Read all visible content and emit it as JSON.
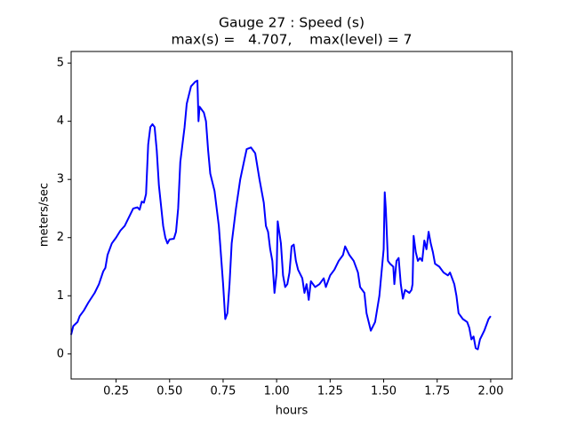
{
  "chart_data": {
    "type": "line",
    "title": "Gauge 27 : Speed (s)",
    "subtitle": "max(s) =   4.707,    max(level) = 7",
    "xlabel": "hours",
    "ylabel": "meters/sec",
    "color": "#0000ff",
    "xlim": [
      0.04,
      2.1
    ],
    "ylim": [
      -0.43,
      5.2
    ],
    "xticks": [
      {
        "value": 0.25,
        "label": "0.25"
      },
      {
        "value": 0.5,
        "label": "0.50"
      },
      {
        "value": 0.75,
        "label": "0.75"
      },
      {
        "value": 1.0,
        "label": "1.00"
      },
      {
        "value": 1.25,
        "label": "1.25"
      },
      {
        "value": 1.5,
        "label": "1.50"
      },
      {
        "value": 1.75,
        "label": "1.75"
      },
      {
        "value": 2.0,
        "label": "2.00"
      }
    ],
    "yticks": [
      0,
      1,
      2,
      3,
      4,
      5
    ],
    "x": [
      0.04,
      0.05,
      0.07,
      0.08,
      0.1,
      0.12,
      0.15,
      0.17,
      0.19,
      0.2,
      0.21,
      0.23,
      0.25,
      0.27,
      0.29,
      0.31,
      0.33,
      0.35,
      0.36,
      0.37,
      0.38,
      0.39,
      0.4,
      0.41,
      0.42,
      0.43,
      0.44,
      0.45,
      0.47,
      0.48,
      0.49,
      0.5,
      0.52,
      0.53,
      0.54,
      0.55,
      0.57,
      0.58,
      0.6,
      0.62,
      0.63,
      0.635,
      0.64,
      0.66,
      0.67,
      0.68,
      0.69,
      0.71,
      0.73,
      0.75,
      0.76,
      0.77,
      0.78,
      0.79,
      0.81,
      0.83,
      0.85,
      0.86,
      0.88,
      0.9,
      0.92,
      0.94,
      0.95,
      0.96,
      0.97,
      0.98,
      0.99,
      1.0,
      1.005,
      1.02,
      1.03,
      1.04,
      1.05,
      1.06,
      1.07,
      1.08,
      1.09,
      1.1,
      1.12,
      1.13,
      1.14,
      1.15,
      1.16,
      1.18,
      1.2,
      1.22,
      1.23,
      1.25,
      1.27,
      1.29,
      1.31,
      1.32,
      1.34,
      1.36,
      1.38,
      1.39,
      1.41,
      1.42,
      1.43,
      1.44,
      1.46,
      1.48,
      1.5,
      1.505,
      1.51,
      1.52,
      1.53,
      1.545,
      1.55,
      1.56,
      1.57,
      1.58,
      1.59,
      1.6,
      1.62,
      1.63,
      1.635,
      1.64,
      1.65,
      1.66,
      1.67,
      1.68,
      1.69,
      1.7,
      1.71,
      1.72,
      1.73,
      1.74,
      1.76,
      1.78,
      1.8,
      1.81,
      1.83,
      1.84,
      1.85,
      1.87,
      1.89,
      1.9,
      1.91,
      1.92,
      1.93,
      1.94,
      1.95,
      1.97,
      1.99,
      2.0
    ],
    "values": [
      0.33,
      0.48,
      0.55,
      0.65,
      0.75,
      0.88,
      1.05,
      1.2,
      1.42,
      1.48,
      1.7,
      1.9,
      2.0,
      2.12,
      2.2,
      2.35,
      2.5,
      2.52,
      2.48,
      2.62,
      2.6,
      2.75,
      3.6,
      3.9,
      3.95,
      3.9,
      3.5,
      2.9,
      2.2,
      2.0,
      1.9,
      1.97,
      1.98,
      2.1,
      2.5,
      3.3,
      3.9,
      4.3,
      4.6,
      4.68,
      4.7,
      4.0,
      4.25,
      4.15,
      4.0,
      3.5,
      3.1,
      2.8,
      2.2,
      1.2,
      0.6,
      0.7,
      1.2,
      1.9,
      2.5,
      3.0,
      3.35,
      3.52,
      3.55,
      3.45,
      3.0,
      2.6,
      2.2,
      2.1,
      1.8,
      1.6,
      1.05,
      1.4,
      2.28,
      1.9,
      1.35,
      1.15,
      1.2,
      1.4,
      1.85,
      1.88,
      1.6,
      1.45,
      1.3,
      1.05,
      1.2,
      0.93,
      1.25,
      1.15,
      1.2,
      1.3,
      1.15,
      1.35,
      1.45,
      1.6,
      1.7,
      1.85,
      1.7,
      1.6,
      1.4,
      1.15,
      1.05,
      0.7,
      0.55,
      0.4,
      0.55,
      1.0,
      1.8,
      2.78,
      2.5,
      1.6,
      1.55,
      1.5,
      1.2,
      1.6,
      1.65,
      1.2,
      0.95,
      1.1,
      1.05,
      1.1,
      1.2,
      2.03,
      1.75,
      1.6,
      1.65,
      1.6,
      1.95,
      1.8,
      2.1,
      1.9,
      1.75,
      1.55,
      1.5,
      1.4,
      1.35,
      1.4,
      1.2,
      1.0,
      0.7,
      0.6,
      0.55,
      0.45,
      0.25,
      0.3,
      0.1,
      0.08,
      0.25,
      0.4,
      0.6,
      0.65
    ]
  }
}
